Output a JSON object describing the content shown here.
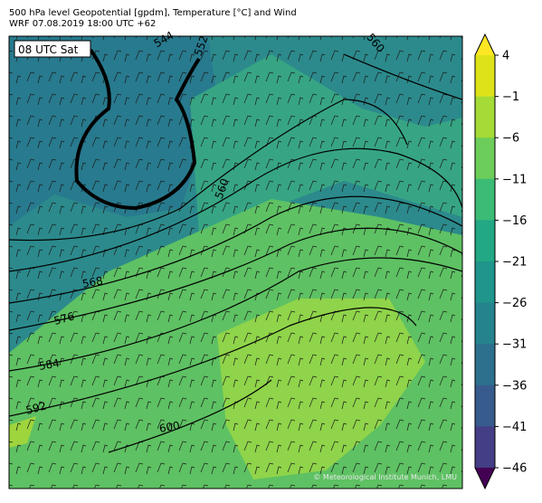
{
  "header": {
    "line1": "500 hPa level Geopotential [gpdm], Temperature [°C] and Wind",
    "line2": "WRF 07.08.2019 18:00 UTC +62"
  },
  "map": {
    "time_label": "08 UTC Sat",
    "credit": "© Meteorological Institute Munich, LMU",
    "contour_labels": [
      "544",
      "552",
      "560",
      "560",
      "568",
      "576",
      "584",
      "592",
      "600"
    ]
  },
  "colorbar": {
    "ticks": [
      "4",
      "−1",
      "−6",
      "−11",
      "−16",
      "−21",
      "−26",
      "−31",
      "−36",
      "−41",
      "−46"
    ],
    "colors": [
      "#fde725",
      "#dde318",
      "#a5db36",
      "#6ccd5a",
      "#3bbb75",
      "#22a884",
      "#1f958b",
      "#25838e",
      "#2d708e",
      "#375b8d",
      "#433e85",
      "#482173",
      "#440154"
    ]
  }
}
